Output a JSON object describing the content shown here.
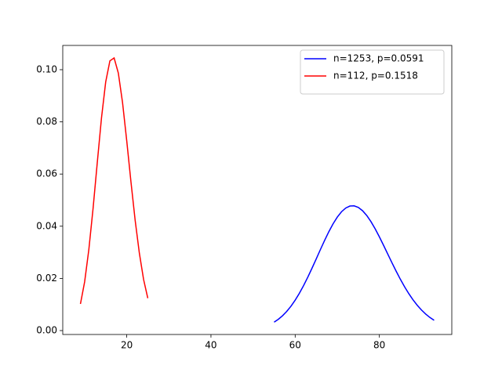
{
  "chart_data": {
    "type": "line",
    "series": [
      {
        "name": "n=1253, p=0.0591",
        "color": "#0000ff",
        "x": [
          55,
          56,
          57,
          58,
          59,
          60,
          61,
          62,
          63,
          64,
          65,
          66,
          67,
          68,
          69,
          70,
          71,
          72,
          73,
          74,
          75,
          76,
          77,
          78,
          79,
          80,
          81,
          82,
          83,
          84,
          85,
          86,
          87,
          88,
          89,
          90,
          91,
          92,
          93
        ],
        "values": [
          0.00322,
          0.00432,
          0.00569,
          0.00735,
          0.00933,
          0.01166,
          0.01429,
          0.01724,
          0.02048,
          0.02391,
          0.02747,
          0.03108,
          0.03459,
          0.03792,
          0.04092,
          0.04349,
          0.04553,
          0.04697,
          0.04773,
          0.0478,
          0.04721,
          0.04595,
          0.04411,
          0.04175,
          0.03899,
          0.03592,
          0.03266,
          0.0293,
          0.02596,
          0.02271,
          0.01962,
          0.01675,
          0.01412,
          0.01176,
          0.00968,
          0.00787,
          0.00632,
          0.00502,
          0.00395
        ]
      },
      {
        "name": "n=112, p=0.1518",
        "color": "#ff0000",
        "x": [
          9,
          10,
          11,
          12,
          13,
          14,
          15,
          16,
          17,
          18,
          19,
          20,
          21,
          22,
          23,
          24,
          25
        ],
        "values": [
          0.0102,
          0.0187,
          0.0311,
          0.0468,
          0.0644,
          0.0815,
          0.0953,
          0.1034,
          0.1045,
          0.0987,
          0.0874,
          0.0727,
          0.057,
          0.0422,
          0.0296,
          0.0196,
          0.0124
        ]
      }
    ],
    "xlim": [
      4.8,
      97.2
    ],
    "xticks": [
      20,
      40,
      60,
      80
    ],
    "ylim": [
      -0.0015,
      0.1093
    ],
    "yticks": [
      {
        "value": 0,
        "label": "0.00"
      },
      {
        "value": 0.02,
        "label": "0.02"
      },
      {
        "value": 0.04,
        "label": "0.04"
      },
      {
        "value": 0.06,
        "label": "0.06"
      },
      {
        "value": 0.08,
        "label": "0.08"
      },
      {
        "value": 0.1,
        "label": "0.10"
      }
    ],
    "legend": "upper right",
    "grid": false
  }
}
